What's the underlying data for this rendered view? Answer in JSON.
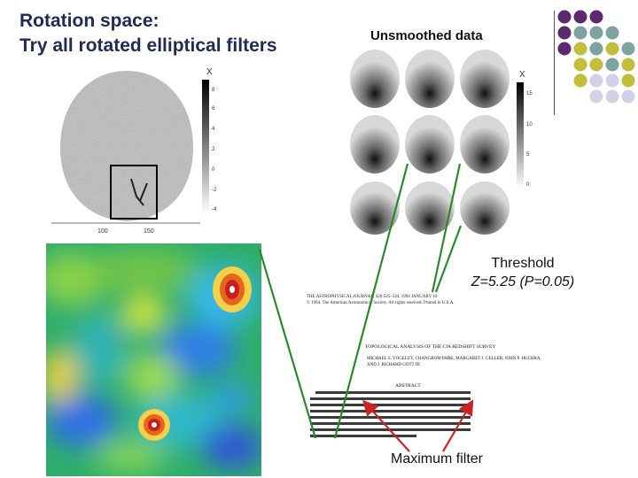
{
  "slide": {
    "title_line1": "Rotation space:",
    "title_line2": "Try all rotated elliptical filters",
    "unsmoothed_label": "Unsmoothed data",
    "threshold_line1": "Threshold",
    "threshold_line2": "Z=5.25 (P=0.05)",
    "max_filter_label": "Maximum filter"
  },
  "left_map": {
    "axis_x_label": "X",
    "colorbar_ticks": [
      "8",
      "6",
      "4",
      "2",
      "0",
      "-2",
      "-4"
    ],
    "x_ticks": [
      "100",
      "150"
    ]
  },
  "right_maps": {
    "axis_x_label": "X",
    "colorbar_ticks": [
      "15",
      "10",
      "5",
      "0"
    ]
  },
  "paper": {
    "header": "THE ASTROPHYSICAL JOURNAL, 420:525–544, 1994 JANUARY 10\n© 1994. The American Astronomical Society. All rights reserved. Printed in U.S.A.",
    "title": "TOPOLOGICAL ANALYSIS OF THE CfA REDSHIFT SURVEY",
    "authors": "MICHAEL S. VOGELEY, CHANGBOM PARK, MARGARET J. GELLER, JOHN P. HUCHRA, AND J. RICHARD GOTT III",
    "abstract_heading": "ABSTRACT"
  },
  "colors": {
    "title": "#1f2a55",
    "purple": "#5b2a6e",
    "teal": "#7fa3a3",
    "olive": "#c2bd3a",
    "lavender": "#d4d0e6",
    "green_line": "#2a8a2a",
    "red_arrow": "#cc2222"
  }
}
